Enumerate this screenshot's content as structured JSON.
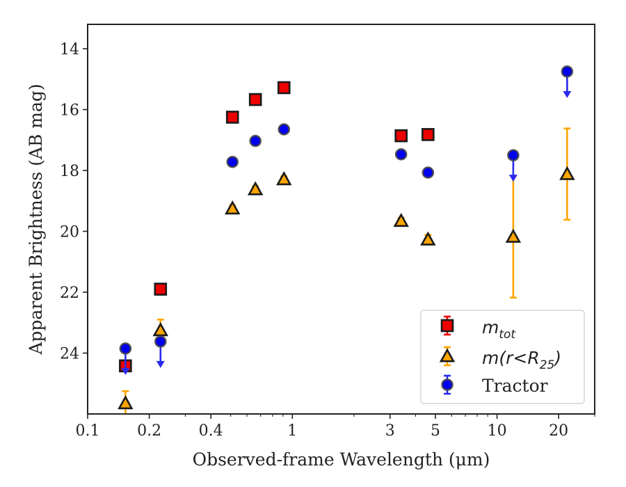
{
  "chart_data": {
    "type": "scatter",
    "xlabel": "Observed-frame Wavelength (μm)",
    "ylabel": "Apparent Brightness (AB mag)",
    "x_scale": "log",
    "y_inverted": true,
    "xlim": [
      0.1,
      30
    ],
    "ylim": [
      26.0,
      13.2
    ],
    "x_ticks": [
      0.1,
      0.2,
      0.4,
      1,
      3,
      5,
      10,
      20
    ],
    "x_tick_labels": [
      "0.1",
      "0.2",
      "0.4",
      "1",
      "3",
      "5",
      "10",
      "20"
    ],
    "y_ticks": [
      14,
      16,
      18,
      20,
      22,
      24
    ],
    "y_tick_labels": [
      "14",
      "16",
      "18",
      "20",
      "22",
      "24"
    ],
    "grid": false,
    "legend_position": "lower-right",
    "series": [
      {
        "name": "m_tot",
        "legend_main": "m",
        "legend_sub": "tot",
        "marker": "square",
        "color": "#ee0000",
        "points": [
          {
            "x": 0.153,
            "y": 24.42,
            "err": 0.1
          },
          {
            "x": 0.227,
            "y": 21.9,
            "err": 0.1
          },
          {
            "x": 0.51,
            "y": 16.25,
            "err": 0.1
          },
          {
            "x": 0.66,
            "y": 15.67,
            "err": 0.1
          },
          {
            "x": 0.91,
            "y": 15.28,
            "err": 0.1
          },
          {
            "x": 3.4,
            "y": 16.86,
            "err": 0.1
          },
          {
            "x": 4.6,
            "y": 16.82,
            "err": 0.1
          }
        ]
      },
      {
        "name": "m(r<R_25)",
        "legend_main": "m(r<R",
        "legend_sub": "25",
        "legend_close": ")",
        "marker": "triangle",
        "color": "#ffa500",
        "points": [
          {
            "x": 0.153,
            "y": 25.65,
            "err": 0.4
          },
          {
            "x": 0.227,
            "y": 23.25,
            "err": 0.35
          },
          {
            "x": 0.51,
            "y": 19.25,
            "err": 0.1
          },
          {
            "x": 0.66,
            "y": 18.62,
            "err": 0.1
          },
          {
            "x": 0.91,
            "y": 18.29,
            "err": 0.1
          },
          {
            "x": 3.4,
            "y": 19.66,
            "err": 0.1
          },
          {
            "x": 4.6,
            "y": 20.27,
            "err": 0.15
          },
          {
            "x": 12.0,
            "y": 20.18,
            "err": 2.0
          },
          {
            "x": 22.0,
            "y": 18.12,
            "err": 1.5
          }
        ]
      },
      {
        "name": "Tractor",
        "legend_main": "Tractor",
        "marker": "circle",
        "color": "#0000ee",
        "points": [
          {
            "x": 0.153,
            "y": 23.85,
            "err": 0.1,
            "upper_limit": true
          },
          {
            "x": 0.227,
            "y": 23.62,
            "err": 0.1,
            "upper_limit": true
          },
          {
            "x": 0.51,
            "y": 17.72,
            "err": 0.1
          },
          {
            "x": 0.66,
            "y": 17.03,
            "err": 0.1
          },
          {
            "x": 0.91,
            "y": 16.65,
            "err": 0.1
          },
          {
            "x": 3.4,
            "y": 17.47,
            "err": 0.1
          },
          {
            "x": 4.6,
            "y": 18.07,
            "err": 0.1
          },
          {
            "x": 12.0,
            "y": 17.5,
            "err": 0.1,
            "upper_limit": true
          },
          {
            "x": 22.0,
            "y": 14.75,
            "err": 0.1,
            "upper_limit": true
          }
        ]
      }
    ]
  }
}
